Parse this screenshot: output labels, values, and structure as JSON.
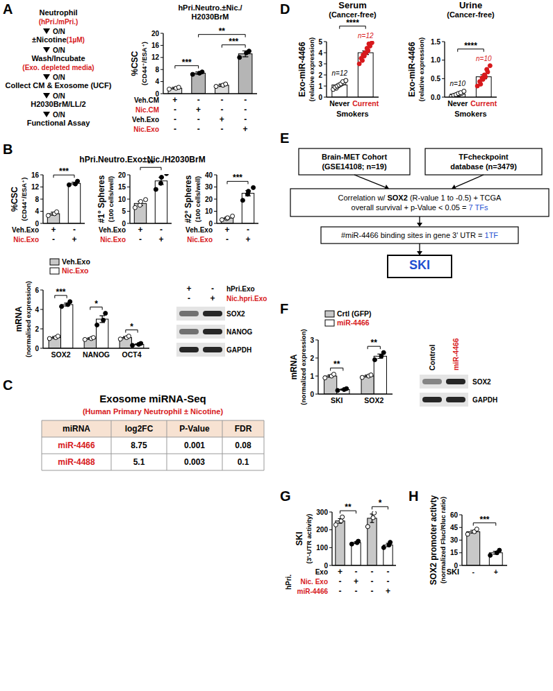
{
  "panel_labels": [
    "A",
    "B",
    "C",
    "D",
    "E",
    "F",
    "G",
    "H"
  ],
  "flow_a": {
    "steps": [
      {
        "text": "Neutrophil",
        "sub": "(hPri./mPri.)"
      },
      {
        "text": "±Nicotine",
        "note": "(1µM)"
      },
      {
        "text": "Wash/Incubate",
        "sub": "(Exo. depleted media)"
      },
      {
        "text": "Collect CM & Exosome (UCF)"
      },
      {
        "text": "H2030BrM/LL/2"
      },
      {
        "text": "Functional Assay"
      }
    ],
    "arrows": [
      "O/N",
      "O/N",
      "O/N",
      "O/N",
      "O/N"
    ]
  },
  "title_b": "hPri.Neutro.Exo±Nic./H2030BrM",
  "chart_data": [
    {
      "type": "bar",
      "title": [
        "hPri.Neutro.±Nic./",
        "H2030BrM"
      ],
      "ylabel": [
        "%CSC",
        "(CD44⁺/ESA⁺)"
      ],
      "categories": [
        null,
        null,
        null,
        null
      ],
      "values": [
        1.8,
        6.8,
        2.8,
        13.2
      ],
      "errors": [
        0.3,
        0.4,
        0.4,
        1.0
      ],
      "points": [
        [
          1.5,
          1.8,
          2.1
        ],
        [
          6.4,
          6.8,
          7.2
        ],
        [
          2.4,
          2.8,
          3.2
        ],
        [
          12.0,
          13.5,
          14.1
        ]
      ],
      "colors": [
        "#dcdcdc",
        "#b5b5b5",
        "#dcdcdc",
        "#b5b5b5"
      ],
      "ylim": [
        0,
        20
      ],
      "yticks": [
        0,
        4,
        8,
        12,
        16,
        20
      ],
      "conditions": [
        {
          "label": "Veh.CM",
          "signs": [
            "+",
            "-",
            "-",
            "-"
          ]
        },
        {
          "label": "Nic.CM",
          "signs": [
            "-",
            "+",
            "-",
            "-"
          ],
          "color": "#d7191c"
        },
        {
          "label": "Veh.Exo",
          "signs": [
            "-",
            "-",
            "+",
            "-"
          ]
        },
        {
          "label": "Nic.Exo",
          "signs": [
            "-",
            "-",
            "-",
            "+"
          ],
          "color": "#d7191c"
        }
      ],
      "significance": [
        {
          "pair": [
            0,
            1
          ],
          "label": "***"
        },
        {
          "pair": [
            2,
            3
          ],
          "label": "***"
        },
        {
          "pair": [
            1,
            3
          ],
          "label": "**"
        }
      ]
    },
    {
      "type": "bar",
      "ylabel": [
        "%CSC",
        "(CD44⁺/ESA⁺)"
      ],
      "categories": [
        null,
        null
      ],
      "values": [
        3.2,
        13.2
      ],
      "errors": [
        0.5,
        0.4
      ],
      "points": [
        [
          2.6,
          3.2,
          3.8
        ],
        [
          12.7,
          13.0,
          13.9
        ]
      ],
      "colors": [
        "#c8c8c8",
        "#ffffff"
      ],
      "ylim": [
        0,
        16
      ],
      "yticks": [
        0,
        4,
        8,
        12,
        16
      ],
      "conditions": [
        {
          "label": "Veh.Exo",
          "signs": [
            "+",
            "-"
          ]
        },
        {
          "label": "Nic.Exo",
          "signs": [
            "-",
            "+"
          ],
          "color": "#d7191c"
        }
      ],
      "significance": [
        {
          "pair": [
            0,
            1
          ],
          "label": "***"
        }
      ]
    },
    {
      "type": "bar",
      "ylabel": [
        "#1° Spheres",
        "(100 cells/well)"
      ],
      "categories": [
        null,
        null
      ],
      "values": [
        8.2,
        17.5
      ],
      "errors": [
        0.9,
        1.5
      ],
      "points": [
        [
          6.5,
          7.5,
          9.0,
          9.8
        ],
        [
          14.0,
          16.5,
          19.0,
          20.5
        ]
      ],
      "colors": [
        "#c8c8c8",
        "#ffffff"
      ],
      "ylim": [
        0,
        20
      ],
      "yticks": [
        0,
        5,
        10,
        15,
        20
      ],
      "conditions": [
        {
          "label": "Veh.Exo",
          "signs": [
            "+",
            "-"
          ]
        },
        {
          "label": "Nic.Exo",
          "signs": [
            "-",
            "+"
          ],
          "color": "#d7191c"
        }
      ],
      "significance": [
        {
          "pair": [
            0,
            1
          ],
          "label": "**"
        }
      ]
    },
    {
      "type": "bar",
      "ylabel": [
        "#2° Spheres",
        "(100 cells/well)"
      ],
      "categories": [
        null,
        null
      ],
      "values": [
        4.4,
        24.8
      ],
      "errors": [
        0.7,
        2.2
      ],
      "points": [
        [
          3.0,
          4.0,
          4.6,
          6.0
        ],
        [
          19.0,
          24.0,
          26.5,
          29.5
        ]
      ],
      "colors": [
        "#c8c8c8",
        "#ffffff"
      ],
      "ylim": [
        0,
        40
      ],
      "yticks": [
        0,
        10,
        20,
        30,
        40
      ],
      "conditions": [
        {
          "label": "Veh.Exo",
          "signs": [
            "+",
            "-"
          ]
        },
        {
          "label": "Nic.Exo",
          "signs": [
            "-",
            "+"
          ],
          "color": "#d7191c"
        }
      ],
      "significance": [
        {
          "pair": [
            0,
            1
          ],
          "label": "***"
        }
      ]
    },
    {
      "type": "bar",
      "ylabel": [
        "mRNA",
        "(normalised expression)"
      ],
      "categories": [
        "SOX2",
        "NANOG",
        "OCT4"
      ],
      "series": [
        {
          "name": "Veh.Exo",
          "color": "#c8c8c8",
          "values": [
            1.1,
            1.0,
            1.1
          ],
          "errors": [
            0.1,
            0.08,
            0.1
          ],
          "points": [
            [
              1.0,
              1.1,
              1.25
            ],
            [
              0.9,
              1.0,
              1.1
            ],
            [
              0.95,
              1.1,
              1.25
            ]
          ]
        },
        {
          "name": "Nic.Exo",
          "color": "#ffffff",
          "values": [
            4.5,
            3.0,
            0.4
          ],
          "errors": [
            0.15,
            0.35,
            0.06
          ],
          "points": [
            [
              4.3,
              4.5,
              4.8
            ],
            [
              2.4,
              2.9,
              3.6
            ],
            [
              0.3,
              0.4,
              0.5
            ]
          ]
        }
      ],
      "ylim": [
        0,
        6
      ],
      "yticks": [
        0,
        2,
        4,
        6
      ],
      "legend": "top",
      "significance": [
        {
          "category": 0,
          "label": "***"
        },
        {
          "category": 1,
          "label": "*"
        },
        {
          "category": 2,
          "label": "*"
        }
      ]
    },
    {
      "type": "bar",
      "title": [
        "Serum",
        "(Cancer-free)"
      ],
      "ylabel": [
        "Exo-miR-4466",
        "(relative expression)"
      ],
      "categories": [
        "Never",
        "Current"
      ],
      "xlabel": "Smokers",
      "values": [
        1.1,
        4.0
      ],
      "errors": [
        0.07,
        0.17
      ],
      "points": [
        [
          0.7,
          0.8,
          0.9,
          1.0,
          1.0,
          1.1,
          1.1,
          1.2,
          1.2,
          1.3,
          1.4,
          1.5
        ],
        [
          3.0,
          3.3,
          3.5,
          3.7,
          3.8,
          4.0,
          4.0,
          4.2,
          4.4,
          4.6,
          4.8,
          4.9
        ]
      ],
      "colors": [
        "#ffffff",
        "#ffffff"
      ],
      "color": "#d7191c",
      "n_labels": [
        "n=12",
        "n=12"
      ],
      "ylim": [
        0,
        5
      ],
      "yticks": [
        0,
        1,
        2,
        3,
        4,
        5
      ],
      "significance": [
        {
          "pair": [
            0,
            1
          ],
          "label": "****"
        }
      ]
    },
    {
      "type": "bar",
      "title": [
        "Urine",
        "(Cancer-free)"
      ],
      "ylabel": [
        "Exo-miR-4466",
        "(relative expression)"
      ],
      "categories": [
        "Never",
        "Current"
      ],
      "xlabel": "Smokers",
      "values": [
        0.08,
        0.55
      ],
      "errors": [
        0.013,
        0.055
      ],
      "points": [
        [
          0.02,
          0.04,
          0.05,
          0.06,
          0.07,
          0.08,
          0.1,
          0.1,
          0.12,
          0.16
        ],
        [
          0.3,
          0.35,
          0.42,
          0.48,
          0.52,
          0.55,
          0.6,
          0.68,
          0.75,
          0.85
        ]
      ],
      "colors": [
        "#ffffff",
        "#ffffff"
      ],
      "color": "#d7191c",
      "n_labels": [
        "n=10",
        "n=10"
      ],
      "ylim": [
        0,
        1.5
      ],
      "yticks": [
        {
          "value": 0,
          "label": "0.0"
        },
        0.5,
        {
          "value": 1,
          "label": "1.0"
        },
        1.5
      ],
      "significance": [
        {
          "pair": [
            0,
            1
          ],
          "label": "****"
        }
      ]
    },
    {
      "type": "bar",
      "ylabel": [
        "mRNA",
        "(normalized expression)"
      ],
      "categories": [
        "SKI",
        "SOX2"
      ],
      "series": [
        {
          "name": "Crtl (GFP)",
          "color": "#c8c8c8",
          "values": [
            1.0,
            1.0
          ],
          "errors": [
            0.06,
            0.05
          ],
          "points": [
            [
              0.9,
              1.0,
              1.1
            ],
            [
              0.92,
              1.0,
              1.06
            ]
          ]
        },
        {
          "name": "miR-4466",
          "color": "#ffffff",
          "values": [
            0.25,
            2.1
          ],
          "errors": [
            0.03,
            0.12
          ],
          "points": [
            [
              0.2,
              0.25,
              0.3
            ],
            [
              1.9,
              2.1,
              2.3
            ]
          ]
        }
      ],
      "ylim": [
        0,
        3
      ],
      "yticks": [
        0,
        1,
        2,
        3
      ],
      "legend": "top",
      "significance": [
        {
          "category": 0,
          "label": "**"
        },
        {
          "category": 1,
          "label": "**"
        }
      ]
    },
    {
      "type": "bar",
      "ylabel": [
        "SKI",
        "(3'-UTR activity)"
      ],
      "categories": [
        null,
        null,
        null,
        null
      ],
      "values": [
        250,
        128,
        265,
        115
      ],
      "errors": [
        13,
        5,
        24,
        9
      ],
      "points": [
        [
          228,
          250,
          272
        ],
        [
          120,
          128,
          136
        ],
        [
          218,
          268,
          295
        ],
        [
          100,
          115,
          130
        ]
      ],
      "colors": [
        "#c8c8c8",
        "#ffffff",
        "#c8c8c8",
        "#ffffff"
      ],
      "ylim": [
        0,
        300
      ],
      "yticks": [
        0,
        100,
        200,
        300
      ],
      "conditions_group": "hPri.",
      "conditions": [
        {
          "label": "Exo",
          "signs": [
            "+",
            "-",
            "-",
            "-"
          ]
        },
        {
          "label": "Nic. Exo",
          "signs": [
            "-",
            "+",
            "-",
            "-"
          ],
          "color": "#d7191c"
        },
        {
          "label": "miR-4466",
          "signs": [
            "-",
            "-",
            "-",
            "+"
          ],
          "color": "#d7191c"
        }
      ],
      "significance": [
        {
          "pair": [
            0,
            1
          ],
          "label": "**"
        },
        {
          "pair": [
            2,
            3
          ],
          "label": "*"
        }
      ]
    },
    {
      "type": "bar",
      "ylabel": [
        "SOX2 promoter activty",
        "(normalized Fluc/Rluc ratio)"
      ],
      "categories": [
        "-",
        "+"
      ],
      "xlabel": "SKI",
      "values": [
        40,
        15
      ],
      "errors": [
        1.7,
        1.7
      ],
      "points": [
        [
          37,
          40,
          43
        ],
        [
          12,
          15,
          18
        ]
      ],
      "colors": [
        "#c8c8c8",
        "#ffffff"
      ],
      "ylim": [
        0,
        60
      ],
      "yticks": [
        0,
        15,
        30,
        45,
        60
      ],
      "significance": [
        {
          "pair": [
            0,
            1
          ],
          "label": "***"
        }
      ]
    }
  ],
  "blot_b": {
    "conditions": [
      {
        "label": "hPri.Exo",
        "signs": [
          "+",
          "-"
        ]
      },
      {
        "label": "Nic.hpri.Exo",
        "signs": [
          "-",
          "+"
        ],
        "color": "#d7191c"
      }
    ],
    "bands": [
      "SOX2",
      "NANOG",
      "GAPDH"
    ]
  },
  "blot_f": {
    "lanes": [
      {
        "label": "Control"
      },
      {
        "label": "miR-4466",
        "color": "#d7191c"
      }
    ],
    "bands": [
      "SOX2",
      "GAPDH"
    ]
  },
  "table_c": {
    "title": "Exosome miRNA-Seq",
    "subtitle": "(Human Primary Neutrophil ± Nicotine)",
    "header": [
      "miRNA",
      "log2FC",
      "P-Value",
      "FDR"
    ],
    "rows": [
      [
        "miR-4466",
        8.75,
        0.001,
        0.08
      ],
      [
        "miR-4488",
        5.1,
        0.003,
        0.1
      ]
    ]
  },
  "flow_e": {
    "sources": [
      {
        "lines": [
          [
            {
              "text": "Brain-MET Cohort",
              "bold": true
            }
          ],
          [
            {
              "text": "(GSE14108; n=19)",
              "bold": true
            }
          ]
        ]
      },
      {
        "lines": [
          [
            {
              "text": "TFcheckpoint",
              "bold": true
            }
          ],
          [
            {
              "text": "database (n=3479)",
              "bold": true
            }
          ]
        ]
      }
    ],
    "steps": [
      {
        "lines": [
          [
            {
              "text": "Correlation w/ "
            },
            {
              "text": "SOX2",
              "bold": true
            },
            {
              "text": " (R-value 1 to -0.5) + TCGA"
            }
          ],
          [
            {
              "text": "overall survival + p-Value < 0.05 = "
            },
            {
              "text": "7 TFs",
              "color": "#1f4fd1"
            }
          ]
        ]
      },
      {
        "lines": [
          [
            {
              "text": "#miR-4466 binding sites in gene 3' UTR = "
            },
            {
              "text": "1TF",
              "color": "#1f4fd1"
            }
          ]
        ]
      }
    ],
    "result": {
      "lines": [
        [
          {
            "text": "SKI",
            "color": "#1f4fd1",
            "bold": true
          }
        ]
      ]
    }
  }
}
